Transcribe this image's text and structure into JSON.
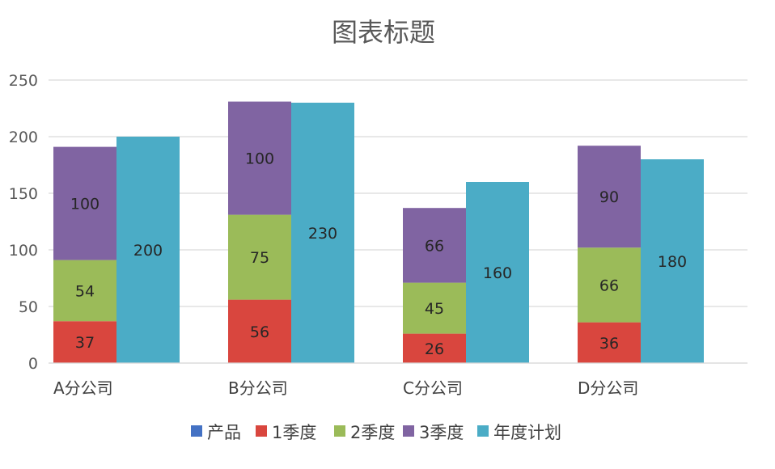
{
  "chart_data": {
    "type": "bar",
    "title": "图表标题",
    "categories": [
      "A分公司",
      "B分公司",
      "C分公司",
      "D分公司"
    ],
    "ylim": [
      0,
      250
    ],
    "yticks": [
      0,
      50,
      100,
      150,
      200,
      250
    ],
    "grid": true,
    "legend_position": "bottom",
    "series": [
      {
        "name": "产品",
        "values": [
          0,
          0,
          0,
          0
        ],
        "color": "#4472C4"
      },
      {
        "name": "1季度",
        "values": [
          37,
          56,
          26,
          36
        ],
        "color": "#D9463E",
        "stack": "actual"
      },
      {
        "name": "2季度",
        "values": [
          54,
          75,
          45,
          66
        ],
        "color": "#9BBB59",
        "stack": "actual"
      },
      {
        "name": "3季度",
        "values": [
          100,
          100,
          66,
          90
        ],
        "color": "#8064A2",
        "stack": "actual"
      },
      {
        "name": "年度计划",
        "values": [
          200,
          230,
          160,
          180
        ],
        "color": "#4BACC6",
        "stack": "plan"
      }
    ]
  }
}
